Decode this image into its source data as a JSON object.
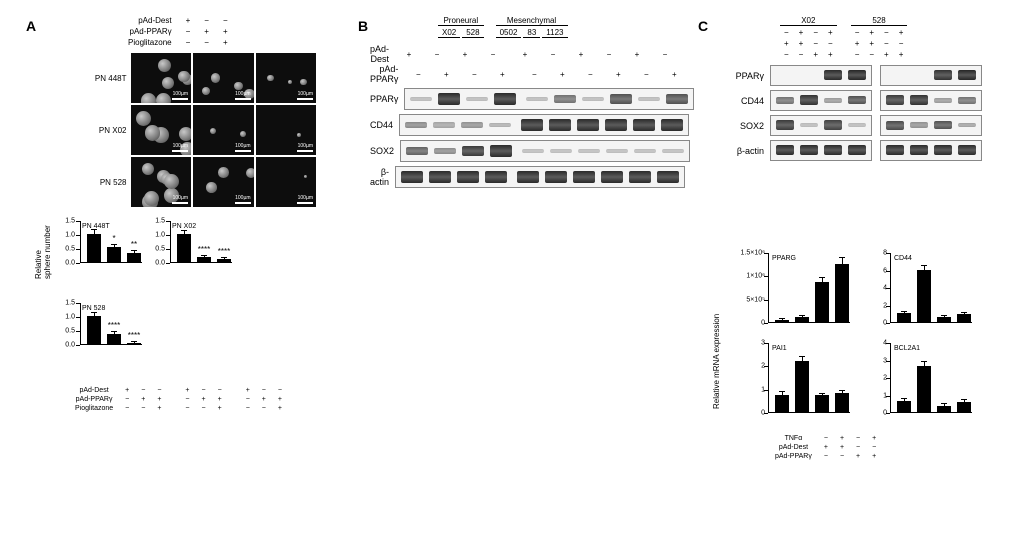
{
  "panels": {
    "A": {
      "label": "A",
      "treatments": {
        "rows": [
          "pAd-Dest",
          "pAd-PPARγ",
          "Pioglitazone"
        ],
        "cols": [
          "+ − −",
          "− + −",
          "− + +"
        ],
        "matrix": [
          [
            "+",
            "−",
            "−"
          ],
          [
            "−",
            "+",
            "+"
          ],
          [
            "−",
            "−",
            "+"
          ]
        ]
      },
      "cell_lines": [
        "PN 448T",
        "PN X02",
        "PN 528"
      ],
      "images": {
        "PN 448T": [
          {
            "spheres": 6,
            "size": "large"
          },
          {
            "spheres": 4,
            "size": "med"
          },
          {
            "spheres": 3,
            "size": "small"
          }
        ],
        "PN X02": [
          {
            "spheres": 5,
            "size": "large"
          },
          {
            "spheres": 2,
            "size": "small"
          },
          {
            "spheres": 1,
            "size": "tiny"
          }
        ],
        "PN 528": [
          {
            "spheres": 7,
            "size": "large"
          },
          {
            "spheres": 3,
            "size": "med"
          },
          {
            "spheres": 1,
            "size": "tiny"
          }
        ]
      },
      "scalebar_label": "100µm",
      "bar_charts": {
        "ylabel": "Relative\nsphere number",
        "ylim": [
          0,
          1.5
        ],
        "ytick_step": 0.5,
        "series": {
          "PN 448T": {
            "values": [
              1.0,
              0.52,
              0.33
            ],
            "err": [
              0.15,
              0.08,
              0.06
            ],
            "sig": [
              "",
              "*",
              "**"
            ]
          },
          "PN X02": {
            "values": [
              1.0,
              0.18,
              0.1
            ],
            "err": [
              0.12,
              0.05,
              0.03
            ],
            "sig": [
              "",
              "****",
              "****"
            ]
          },
          "PN 528": {
            "values": [
              1.0,
              0.37,
              0.04
            ],
            "err": [
              0.11,
              0.07,
              0.02
            ],
            "sig": [
              "",
              "****",
              "****"
            ]
          }
        },
        "bar_color": "#000000"
      }
    },
    "B": {
      "label": "B",
      "groups": {
        "Proneural": [
          "X02",
          "528"
        ],
        "Mesenchymal": [
          "0502",
          "83",
          "1123"
        ]
      },
      "treatments": {
        "rows": [
          "pAd-Dest",
          "pAd-PPARγ"
        ],
        "per_sample": [
          "−",
          "+"
        ]
      },
      "targets": [
        "PPARγ",
        "CD44",
        "SOX2",
        "β-actin"
      ],
      "bands": {
        "PPARγ": [
          0.05,
          0.95,
          0.05,
          0.95,
          0.05,
          0.5,
          0.05,
          0.7,
          0.05,
          0.7
        ],
        "CD44": [
          0.35,
          0.18,
          0.3,
          0.12,
          0.95,
          0.95,
          0.95,
          0.95,
          0.95,
          0.95
        ],
        "SOX2": [
          0.6,
          0.35,
          0.85,
          0.95,
          0.03,
          0.03,
          0.03,
          0.03,
          0.03,
          0.03
        ],
        "β-actin": [
          0.95,
          0.95,
          0.95,
          0.95,
          0.95,
          0.95,
          0.95,
          0.95,
          0.95,
          0.95
        ]
      }
    },
    "C": {
      "label": "C",
      "cell_lines": [
        "X02",
        "528"
      ],
      "treatments": {
        "rows": [
          "TNFα",
          "pAd-Dest",
          "pAd-PPARγ"
        ],
        "matrix": [
          [
            "−",
            "+",
            "−",
            "+"
          ],
          [
            "+",
            "+",
            "−",
            "−"
          ],
          [
            "−",
            "−",
            "+",
            "+"
          ]
        ]
      },
      "targets": [
        "PPARγ",
        "CD44",
        "SOX2",
        "β-actin"
      ],
      "bands": {
        "X02": {
          "PPARγ": [
            0.02,
            0.02,
            0.95,
            0.98
          ],
          "CD44": [
            0.5,
            0.9,
            0.25,
            0.7
          ],
          "SOX2": [
            0.85,
            0.05,
            0.8,
            0.05
          ],
          "β-actin": [
            0.95,
            0.95,
            0.95,
            0.95
          ]
        },
        "528": {
          "PPARγ": [
            0.02,
            0.02,
            0.9,
            0.98
          ],
          "CD44": [
            0.85,
            0.9,
            0.25,
            0.5
          ],
          "SOX2": [
            0.75,
            0.3,
            0.7,
            0.2
          ],
          "β-actin": [
            0.95,
            0.95,
            0.95,
            0.95
          ]
        }
      },
      "mrna": {
        "ylabel": "Relative mRNA expression",
        "charts": {
          "PPARG": {
            "ylim": [
              0,
              1500000.0
            ],
            "yticks": [
              "0",
              "5×10⁵",
              "1×10⁶",
              "1.5×10⁶"
            ],
            "values": [
              40000.0,
              100000.0,
              850000.0,
              1250000.0
            ],
            "err": [
              20000.0,
              30000.0,
              100000.0,
              120000.0
            ]
          },
          "CD44": {
            "ylim": [
              0,
              8
            ],
            "yticks": [
              "0",
              "2",
              "4",
              "6",
              "8"
            ],
            "values": [
              1.0,
              6.0,
              0.6,
              0.9
            ],
            "err": [
              0.15,
              0.4,
              0.1,
              0.15
            ]
          },
          "PAI1": {
            "ylim": [
              0,
              4
            ],
            "yticks": [
              "0",
              "1",
              "2",
              "3"
            ],
            "values": [
              1.0,
              2.9,
              0.95,
              1.1
            ],
            "err": [
              0.12,
              0.25,
              0.1,
              0.12
            ]
          },
          "BCL2A1": {
            "ylim": [
              0,
              5
            ],
            "yticks": [
              "0",
              "1",
              "2",
              "3",
              "4"
            ],
            "values": [
              0.8,
              3.3,
              0.45,
              0.75
            ],
            "err": [
              0.15,
              0.3,
              0.1,
              0.12
            ]
          }
        },
        "bar_color": "#000000"
      }
    }
  },
  "colors": {
    "background": "#ffffff",
    "text": "#000000",
    "bar": "#000000",
    "band_dark": "#1a1a1a"
  }
}
